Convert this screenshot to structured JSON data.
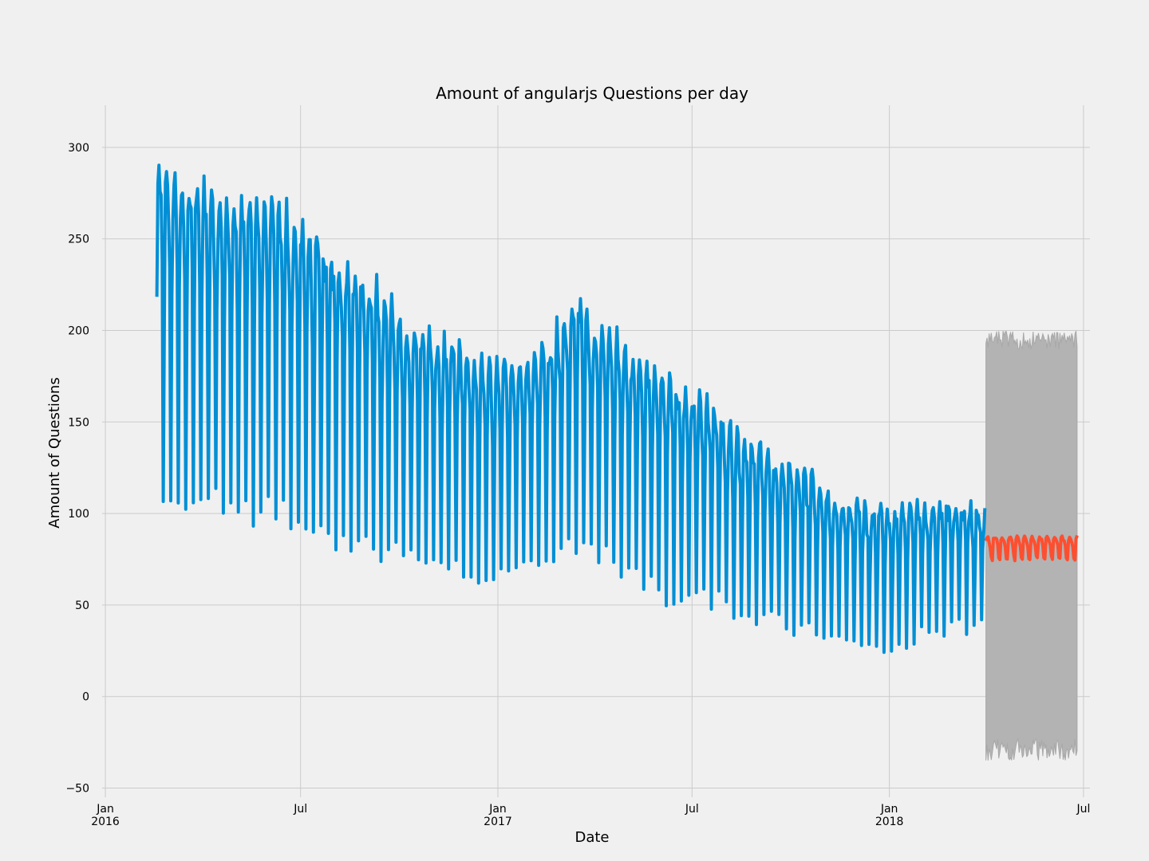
{
  "chart_data": {
    "type": "line",
    "title": "Amount of angularjs Questions per day",
    "xlabel": "Date",
    "ylabel": "Amount of Questions",
    "ylim": [
      -55,
      323
    ],
    "xlim": [
      "2015-12-29",
      "2018-07-07"
    ],
    "grid": true,
    "legend": "none",
    "yticks": [
      -50,
      0,
      50,
      100,
      150,
      200,
      250,
      300
    ],
    "xticks": [
      {
        "date": "2016-01-01",
        "label": "Jan",
        "sub": "2016"
      },
      {
        "date": "2016-07-01",
        "label": "Jul",
        "sub": ""
      },
      {
        "date": "2017-01-01",
        "label": "Jan",
        "sub": "2017"
      },
      {
        "date": "2017-07-01",
        "label": "Jul",
        "sub": ""
      },
      {
        "date": "2018-01-01",
        "label": "Jan",
        "sub": "2018"
      },
      {
        "date": "2018-07-01",
        "label": "Jul",
        "sub": ""
      }
    ],
    "colors": {
      "observed": "#008fd5",
      "forecast": "#fc4f30",
      "interval": "#b3b3b3",
      "interval_edge": "#a8a8a8",
      "background": "#f0f0f0",
      "grid": "#cbcbcb"
    },
    "series": [
      {
        "role": "observed",
        "start": "2016-02-18",
        "end": "2018-03-31",
        "trend": [
          {
            "date": "2016-02-18",
            "peak": 285,
            "low": 106
          },
          {
            "date": "2016-03-15",
            "peak": 280,
            "low": 105
          },
          {
            "date": "2016-04-15",
            "peak": 270,
            "low": 100
          },
          {
            "date": "2016-05-15",
            "peak": 270,
            "low": 97
          },
          {
            "date": "2016-06-15",
            "peak": 265,
            "low": 95
          },
          {
            "date": "2016-07-15",
            "peak": 245,
            "low": 88
          },
          {
            "date": "2016-08-15",
            "peak": 235,
            "low": 82
          },
          {
            "date": "2016-09-15",
            "peak": 215,
            "low": 78
          },
          {
            "date": "2016-10-15",
            "peak": 200,
            "low": 72
          },
          {
            "date": "2016-11-15",
            "peak": 190,
            "low": 70
          },
          {
            "date": "2016-12-20",
            "peak": 180,
            "low": 58
          },
          {
            "date": "2017-01-15",
            "peak": 180,
            "low": 70
          },
          {
            "date": "2017-02-15",
            "peak": 190,
            "low": 78
          },
          {
            "date": "2017-03-15",
            "peak": 215,
            "low": 78
          },
          {
            "date": "2017-04-15",
            "peak": 195,
            "low": 70
          },
          {
            "date": "2017-05-15",
            "peak": 180,
            "low": 62
          },
          {
            "date": "2017-06-15",
            "peak": 170,
            "low": 52
          },
          {
            "date": "2017-07-15",
            "peak": 160,
            "low": 50
          },
          {
            "date": "2017-08-15",
            "peak": 140,
            "low": 42
          },
          {
            "date": "2017-09-15",
            "peak": 130,
            "low": 38
          },
          {
            "date": "2017-10-15",
            "peak": 120,
            "low": 36
          },
          {
            "date": "2017-11-15",
            "peak": 105,
            "low": 30
          },
          {
            "date": "2017-12-31",
            "peak": 100,
            "low": 22
          },
          {
            "date": "2018-01-31",
            "peak": 105,
            "low": 35
          },
          {
            "date": "2018-03-31",
            "peak": 100,
            "low": 40
          }
        ]
      },
      {
        "role": "forecast",
        "start": "2018-04-01",
        "end": "2018-06-25",
        "high": 87,
        "low": 75,
        "interval": {
          "upper_low": 185,
          "upper_high": 200,
          "lower_high": -23,
          "lower_low": -38
        }
      }
    ]
  }
}
